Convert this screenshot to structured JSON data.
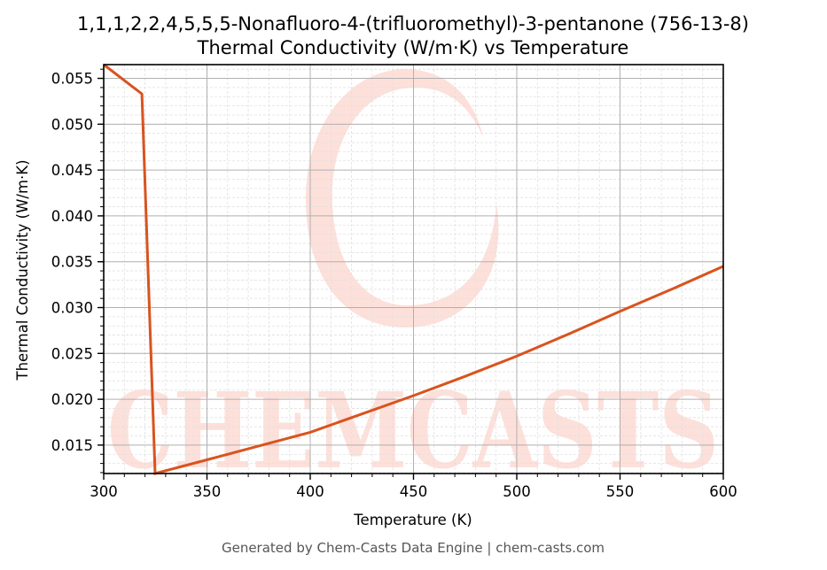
{
  "chart_data": {
    "type": "line",
    "title": "1,1,1,2,2,4,5,5,5-Nonafluoro-4-(trifluoromethyl)-3-pentanone (756-13-8)",
    "subtitle": "Thermal Conductivity (W/m·K) vs Temperature",
    "xlabel": "Temperature (K)",
    "ylabel": "Thermal Conductivity (W/m·K)",
    "xlim": [
      300,
      600
    ],
    "ylim": [
      0.0119,
      0.0565
    ],
    "xticks": [
      300,
      350,
      400,
      450,
      500,
      550,
      600
    ],
    "xtick_labels": [
      "300",
      "350",
      "400",
      "450",
      "500",
      "550",
      "600"
    ],
    "yticks": [
      0.015,
      0.02,
      0.025,
      0.03,
      0.035,
      0.04,
      0.045,
      0.05,
      0.055
    ],
    "ytick_labels": [
      "0.015",
      "0.020",
      "0.025",
      "0.030",
      "0.035",
      "0.040",
      "0.045",
      "0.050",
      "0.055"
    ],
    "x_minor_step": 10,
    "y_minor_step": 0.001,
    "grid": true,
    "legend": null,
    "series": [
      {
        "name": "Thermal Conductivity",
        "color": "#d9531e",
        "x": [
          300,
          318.5,
          324.9,
          350,
          375,
          400,
          425,
          450,
          475,
          500,
          525,
          550,
          575,
          600
        ],
        "values": [
          0.0565,
          0.0533,
          0.0119,
          0.0134,
          0.0149,
          0.0164,
          0.0184,
          0.0204,
          0.0225,
          0.0247,
          0.0271,
          0.0296,
          0.032,
          0.0345
        ]
      }
    ]
  },
  "watermark": {
    "text": "CHEMCASTS",
    "color": "#fde0da"
  },
  "footer": {
    "text": "Generated by Chem-Casts Data Engine | chem-casts.com"
  },
  "colors": {
    "line": "#d9531e",
    "grid_major": "#b0b0b0",
    "grid_minor": "#e0e0e0",
    "axis": "#000000"
  }
}
